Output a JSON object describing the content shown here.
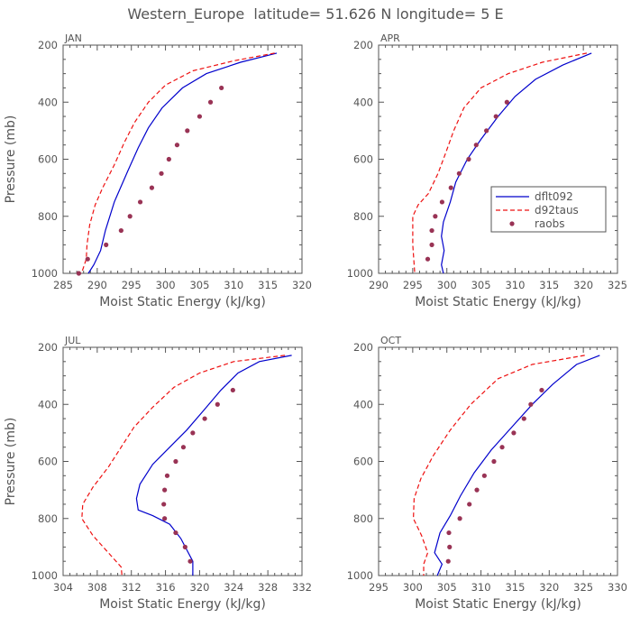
{
  "title": "Western_Europe  latitude= 51.626 N longitude= 5 E",
  "ylabel": "Pressure (mb)",
  "xlabel": "Moist Static Energy (kJ/kg)",
  "colors": {
    "model": "#0000cc",
    "control": "#ee1111",
    "obs": "#993355",
    "axis": "#555555"
  },
  "legend": {
    "entries": [
      {
        "name": "dflt092",
        "style": "solid"
      },
      {
        "name": "d92taus",
        "style": "dashed"
      },
      {
        "name": "raobs",
        "style": "dots"
      }
    ]
  },
  "chart_data": [
    {
      "type": "line",
      "title": "JAN",
      "xlabel": "Moist Static Energy (kJ/kg)",
      "ylabel": "Pressure (mb)",
      "xlim": [
        285,
        320
      ],
      "ylim": [
        1000,
        200
      ],
      "xticks": [
        285,
        290,
        295,
        300,
        305,
        310,
        315,
        320
      ],
      "yticks": [
        200,
        400,
        600,
        800,
        1000
      ],
      "series": [
        {
          "name": "dflt092",
          "points": [
            [
              316.3,
              228
            ],
            [
              311,
              260
            ],
            [
              306,
              300
            ],
            [
              302.5,
              350
            ],
            [
              299.5,
              420
            ],
            [
              297.5,
              490
            ],
            [
              296,
              560
            ],
            [
              294.5,
              640
            ],
            [
              292.5,
              750
            ],
            [
              291.2,
              850
            ],
            [
              290.5,
              920
            ],
            [
              289.5,
              970
            ],
            [
              288.7,
              1000
            ]
          ]
        },
        {
          "name": "d92taus",
          "points": [
            [
              316,
              228
            ],
            [
              310,
              255
            ],
            [
              304,
              290
            ],
            [
              300,
              340
            ],
            [
              297.5,
              400
            ],
            [
              295.5,
              470
            ],
            [
              294,
              540
            ],
            [
              292.5,
              620
            ],
            [
              290.8,
              700
            ],
            [
              289.7,
              760
            ],
            [
              288.9,
              830
            ],
            [
              288.5,
              900
            ],
            [
              288.4,
              950
            ],
            [
              287.7,
              1000
            ]
          ]
        },
        {
          "name": "raobs",
          "points": [
            [
              308.2,
              350
            ],
            [
              306.6,
              400
            ],
            [
              305,
              450
            ],
            [
              303.2,
              500
            ],
            [
              301.7,
              550
            ],
            [
              300.5,
              600
            ],
            [
              299.4,
              650
            ],
            [
              298,
              700
            ],
            [
              296.3,
              750
            ],
            [
              294.8,
              800
            ],
            [
              293.5,
              850
            ],
            [
              291.3,
              900
            ],
            [
              288.6,
              950
            ],
            [
              287.3,
              1000
            ]
          ]
        }
      ]
    },
    {
      "type": "line",
      "title": "APR",
      "xlabel": "Moist Static Energy (kJ/kg)",
      "ylabel": "",
      "xlim": [
        290,
        325
      ],
      "ylim": [
        1000,
        200
      ],
      "xticks": [
        290,
        295,
        300,
        305,
        310,
        315,
        320,
        325
      ],
      "yticks": [
        200,
        400,
        600,
        800,
        1000
      ],
      "series": [
        {
          "name": "dflt092",
          "points": [
            [
              321.2,
              228
            ],
            [
              317,
              270
            ],
            [
              313,
              320
            ],
            [
              310,
              380
            ],
            [
              307.5,
              450
            ],
            [
              305,
              530
            ],
            [
              303,
              600
            ],
            [
              301.3,
              680
            ],
            [
              300.5,
              750
            ],
            [
              299.5,
              820
            ],
            [
              299.2,
              870
            ],
            [
              299.6,
              920
            ],
            [
              299.2,
              970
            ],
            [
              299.5,
              1000
            ]
          ]
        },
        {
          "name": "d92taus",
          "points": [
            [
              320.5,
              228
            ],
            [
              314,
              260
            ],
            [
              309,
              300
            ],
            [
              305,
              350
            ],
            [
              302.5,
              420
            ],
            [
              301,
              500
            ],
            [
              299.8,
              580
            ],
            [
              298.7,
              650
            ],
            [
              297.3,
              720
            ],
            [
              295.8,
              760
            ],
            [
              295,
              800
            ],
            [
              295,
              900
            ],
            [
              295.3,
              1000
            ]
          ]
        },
        {
          "name": "raobs",
          "points": [
            [
              308.8,
              400
            ],
            [
              307.2,
              450
            ],
            [
              305.8,
              500
            ],
            [
              304.3,
              550
            ],
            [
              303.2,
              600
            ],
            [
              301.8,
              650
            ],
            [
              300.6,
              700
            ],
            [
              299.3,
              750
            ],
            [
              298.3,
              800
            ],
            [
              297.8,
              850
            ],
            [
              297.8,
              900
            ],
            [
              297.2,
              950
            ]
          ]
        }
      ]
    },
    {
      "type": "line",
      "title": "JUL",
      "xlabel": "Moist Static Energy (kJ/kg)",
      "ylabel": "Pressure (mb)",
      "xlim": [
        304,
        332
      ],
      "ylim": [
        1000,
        200
      ],
      "xticks": [
        304,
        308,
        312,
        316,
        320,
        324,
        328,
        332
      ],
      "yticks": [
        200,
        400,
        600,
        800,
        1000
      ],
      "series": [
        {
          "name": "dflt092",
          "points": [
            [
              330.8,
              228
            ],
            [
              327,
              250
            ],
            [
              324.5,
              290
            ],
            [
              322.5,
              350
            ],
            [
              320.5,
              420
            ],
            [
              318.5,
              490
            ],
            [
              316.5,
              550
            ],
            [
              314.5,
              610
            ],
            [
              313,
              680
            ],
            [
              312.6,
              730
            ],
            [
              312.8,
              770
            ],
            [
              314.5,
              790
            ],
            [
              316.5,
              820
            ],
            [
              317.8,
              870
            ],
            [
              318.5,
              910
            ],
            [
              319.2,
              950
            ],
            [
              319.2,
              1000
            ]
          ]
        },
        {
          "name": "d92taus",
          "points": [
            [
              330,
              228
            ],
            [
              324,
              250
            ],
            [
              320,
              290
            ],
            [
              317,
              340
            ],
            [
              314.5,
              410
            ],
            [
              312.3,
              480
            ],
            [
              310.8,
              550
            ],
            [
              309.3,
              620
            ],
            [
              307.5,
              690
            ],
            [
              306.3,
              750
            ],
            [
              306.2,
              800
            ],
            [
              307.5,
              860
            ],
            [
              309.3,
              920
            ],
            [
              310.8,
              970
            ],
            [
              310.9,
              1000
            ]
          ]
        },
        {
          "name": "raobs",
          "points": [
            [
              323.9,
              350
            ],
            [
              322.1,
              400
            ],
            [
              320.6,
              450
            ],
            [
              319.2,
              500
            ],
            [
              318.1,
              550
            ],
            [
              317.2,
              600
            ],
            [
              316.2,
              650
            ],
            [
              315.9,
              700
            ],
            [
              315.8,
              750
            ],
            [
              315.9,
              800
            ],
            [
              317.2,
              850
            ],
            [
              318.3,
              900
            ],
            [
              318.9,
              950
            ]
          ]
        }
      ]
    },
    {
      "type": "line",
      "title": "OCT",
      "xlabel": "Moist Static Energy (kJ/kg)",
      "ylabel": "",
      "xlim": [
        295,
        330
      ],
      "ylim": [
        1000,
        200
      ],
      "xticks": [
        295,
        300,
        305,
        310,
        315,
        320,
        325,
        330
      ],
      "yticks": [
        200,
        400,
        600,
        800,
        1000
      ],
      "series": [
        {
          "name": "dflt092",
          "points": [
            [
              327.4,
              228
            ],
            [
              324,
              260
            ],
            [
              320.5,
              330
            ],
            [
              317.5,
              400
            ],
            [
              314.5,
              480
            ],
            [
              311.5,
              560
            ],
            [
              309,
              640
            ],
            [
              307,
              720
            ],
            [
              305.5,
              790
            ],
            [
              304,
              850
            ],
            [
              303.2,
              920
            ],
            [
              304.3,
              960
            ],
            [
              303.6,
              1000
            ]
          ]
        },
        {
          "name": "d92taus",
          "points": [
            [
              325.2,
              228
            ],
            [
              317.5,
              260
            ],
            [
              312.5,
              310
            ],
            [
              308.5,
              400
            ],
            [
              305.5,
              490
            ],
            [
              303,
              580
            ],
            [
              301.2,
              660
            ],
            [
              300.2,
              730
            ],
            [
              300.1,
              800
            ],
            [
              301.3,
              860
            ],
            [
              302.2,
              920
            ],
            [
              301.6,
              960
            ],
            [
              301.6,
              1000
            ]
          ]
        },
        {
          "name": "raobs",
          "points": [
            [
              318.9,
              350
            ],
            [
              317.3,
              400
            ],
            [
              316.3,
              450
            ],
            [
              314.8,
              500
            ],
            [
              313.1,
              550
            ],
            [
              311.9,
              600
            ],
            [
              310.5,
              650
            ],
            [
              309.4,
              700
            ],
            [
              308.3,
              750
            ],
            [
              306.9,
              800
            ],
            [
              305.3,
              850
            ],
            [
              305.4,
              900
            ],
            [
              305.2,
              950
            ]
          ]
        }
      ]
    }
  ]
}
